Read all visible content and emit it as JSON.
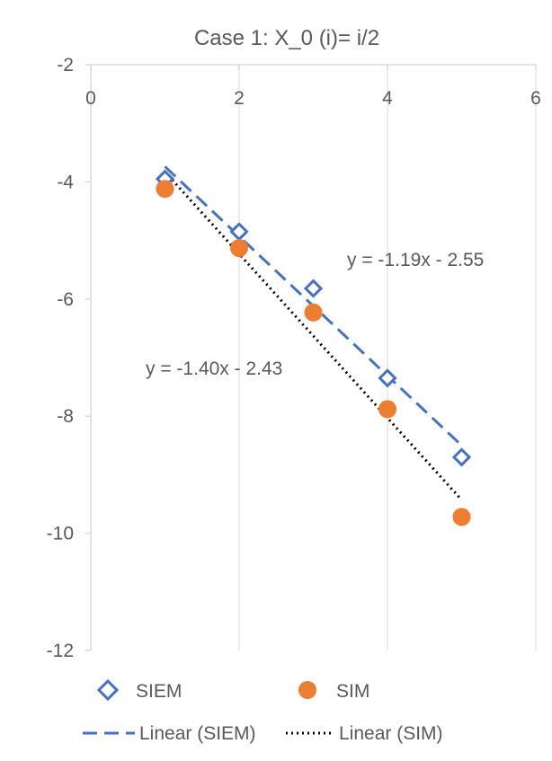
{
  "chart_data": {
    "type": "scatter",
    "title": "Case 1: X_0 (i)= i/2",
    "xlabel": "",
    "ylabel": "",
    "xlim": [
      0,
      6
    ],
    "ylim": [
      -12,
      -2
    ],
    "x_ticks": [
      "0",
      "2",
      "4",
      "6"
    ],
    "y_ticks": [
      "-2",
      "-4",
      "-6",
      "-8",
      "-10",
      "-12"
    ],
    "x_tick_values": [
      0,
      2,
      4,
      6
    ],
    "y_tick_values": [
      -2,
      -4,
      -6,
      -8,
      -10,
      -12
    ],
    "grid": "vertical",
    "x_axis_position": "top",
    "legend_position": "bottom",
    "series": [
      {
        "name": "SIEM",
        "marker": "diamond-open",
        "color": "#4472C4",
        "x": [
          1,
          2,
          3,
          4,
          5
        ],
        "y": [
          -3.95,
          -4.85,
          -5.82,
          -7.35,
          -8.7
        ]
      },
      {
        "name": "SIM",
        "marker": "circle-filled",
        "color": "#ED7D31",
        "x": [
          1,
          2,
          3,
          4,
          5
        ],
        "y": [
          -4.12,
          -5.13,
          -6.23,
          -7.88,
          -9.72
        ]
      }
    ],
    "trendlines": [
      {
        "name": "Linear (SIEM)",
        "style": "dashed",
        "color": "#4472C4",
        "slope": -1.19,
        "intercept": -2.55,
        "x_range": [
          1,
          5
        ],
        "equation": "y = -1.19x - 2.55"
      },
      {
        "name": "Linear (SIM)",
        "style": "dotted",
        "color": "#000000",
        "slope": -1.4,
        "intercept": -2.43,
        "x_range": [
          1,
          5
        ],
        "equation": "y = -1.40x - 2.43"
      }
    ]
  }
}
